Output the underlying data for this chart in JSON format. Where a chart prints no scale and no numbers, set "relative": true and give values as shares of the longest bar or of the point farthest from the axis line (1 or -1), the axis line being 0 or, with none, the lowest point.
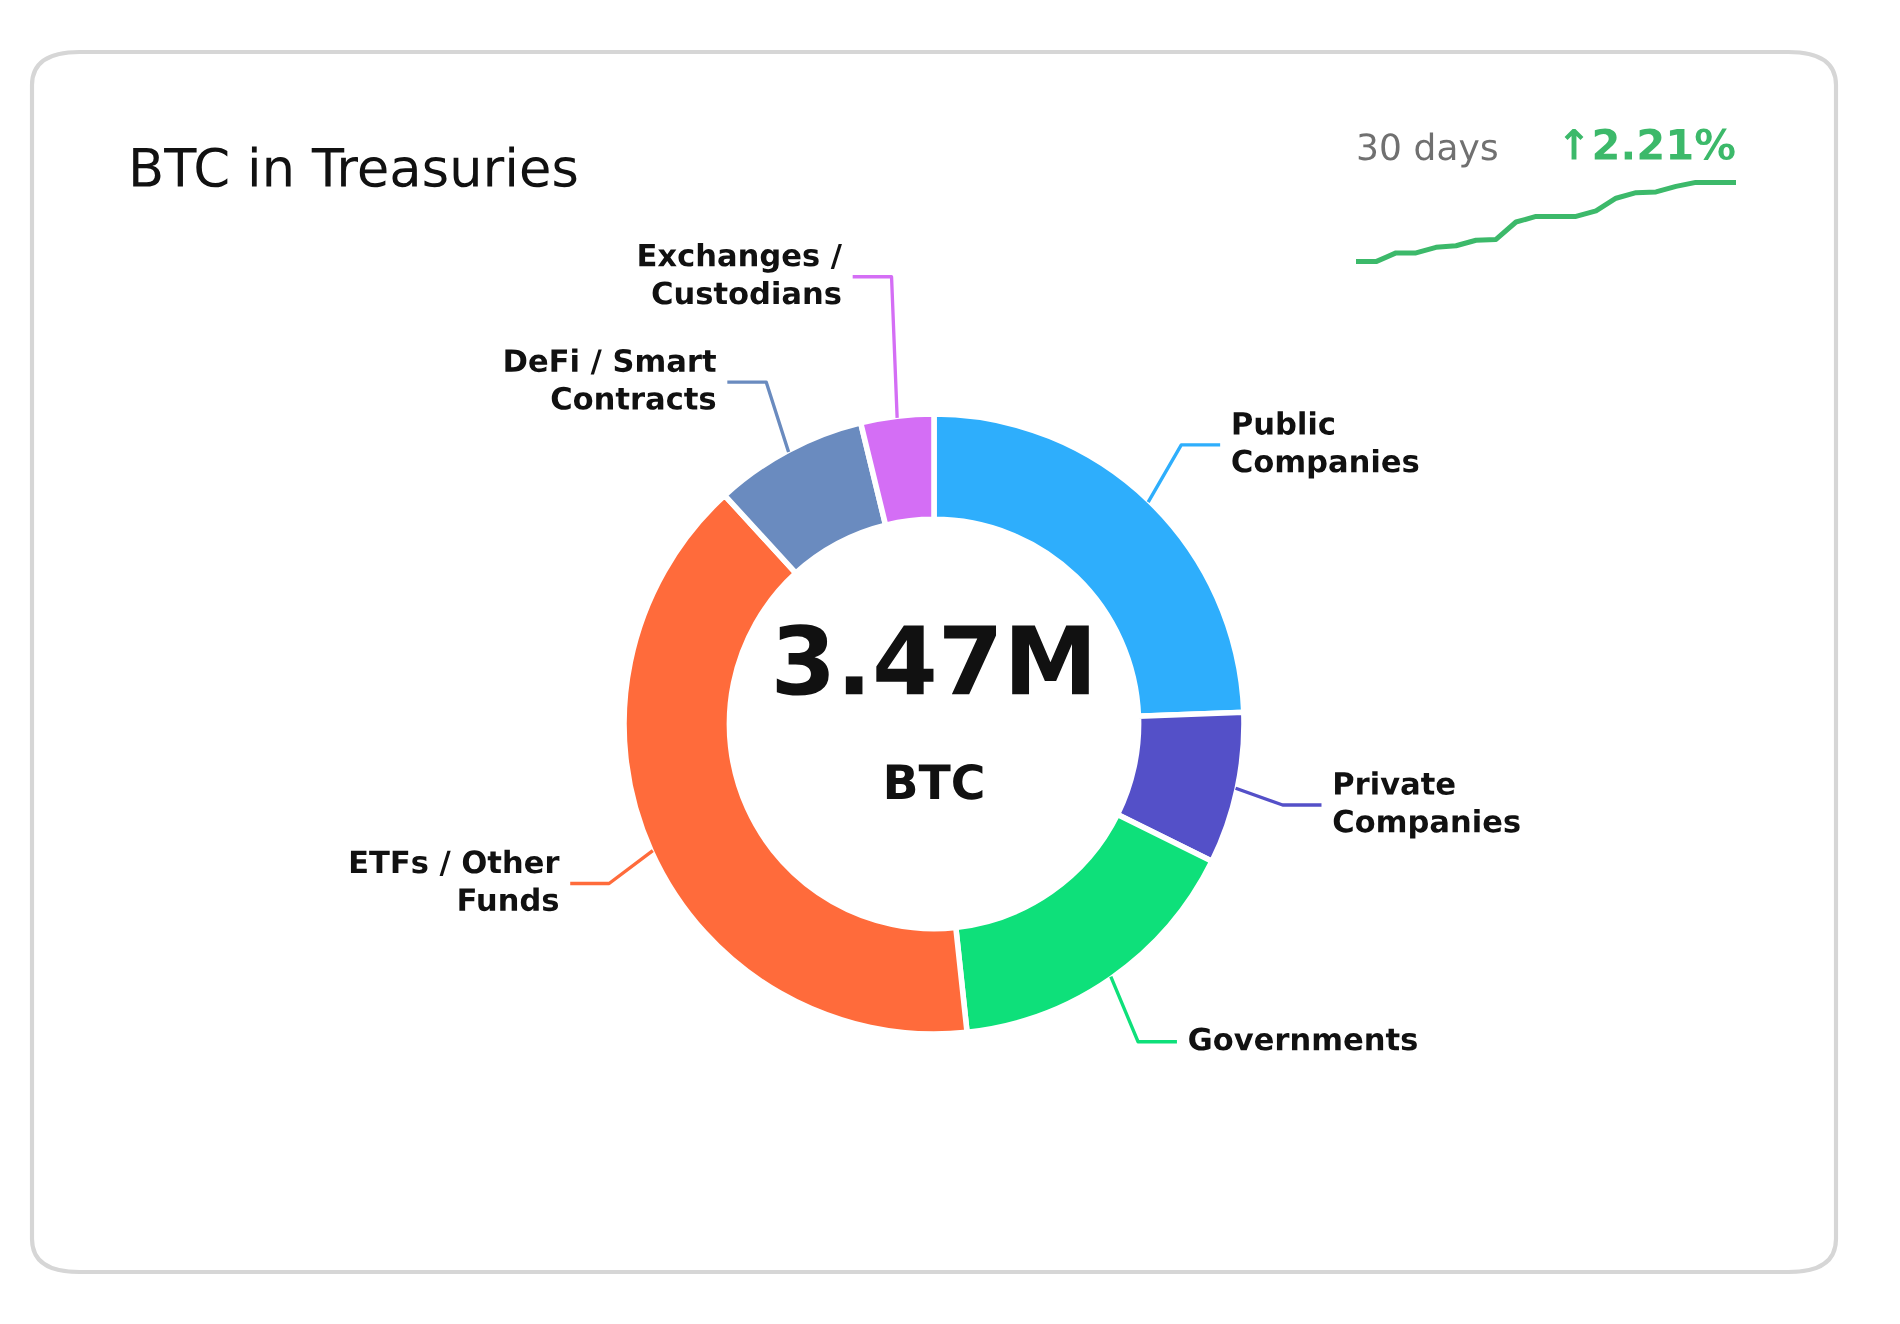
{
  "chart_data": [
    {
      "type": "donut",
      "title": "BTC in Treasuries",
      "categories": [
        "Public\nCompanies",
        "Private\nCompanies",
        "Governments",
        "ETFs / Other\nFunds",
        "DeFi / Smart\nContracts",
        "Exchanges /\nCustodians"
      ],
      "values": [
        24.4,
        7.9,
        16.0,
        39.9,
        8.0,
        3.8
      ],
      "colors": [
        "#2eaefc",
        "#5450c8",
        "#0ee07a",
        "#ff6b3b",
        "#6a8bbf",
        "#d46ef5"
      ],
      "annotations": [
        "3.47M",
        "BTC"
      ]
    },
    {
      "type": "line",
      "title": "30 days",
      "annotations": [
        "↑2.21%"
      ],
      "relative": true,
      "categories": [
        null,
        null,
        null,
        null,
        null,
        null,
        null,
        null,
        null,
        null,
        null,
        null,
        null,
        null,
        null,
        null,
        null,
        null,
        null,
        null
      ],
      "series": [
        {
          "color": "#3cb96a",
          "values": [
            0,
            0,
            0.11,
            0.11,
            0.18,
            0.2,
            0.27,
            0.28,
            0.5,
            0.57,
            0.57,
            0.57,
            0.64,
            0.8,
            0.87,
            0.88,
            0.95,
            1,
            1,
            1
          ]
        }
      ]
    }
  ]
}
